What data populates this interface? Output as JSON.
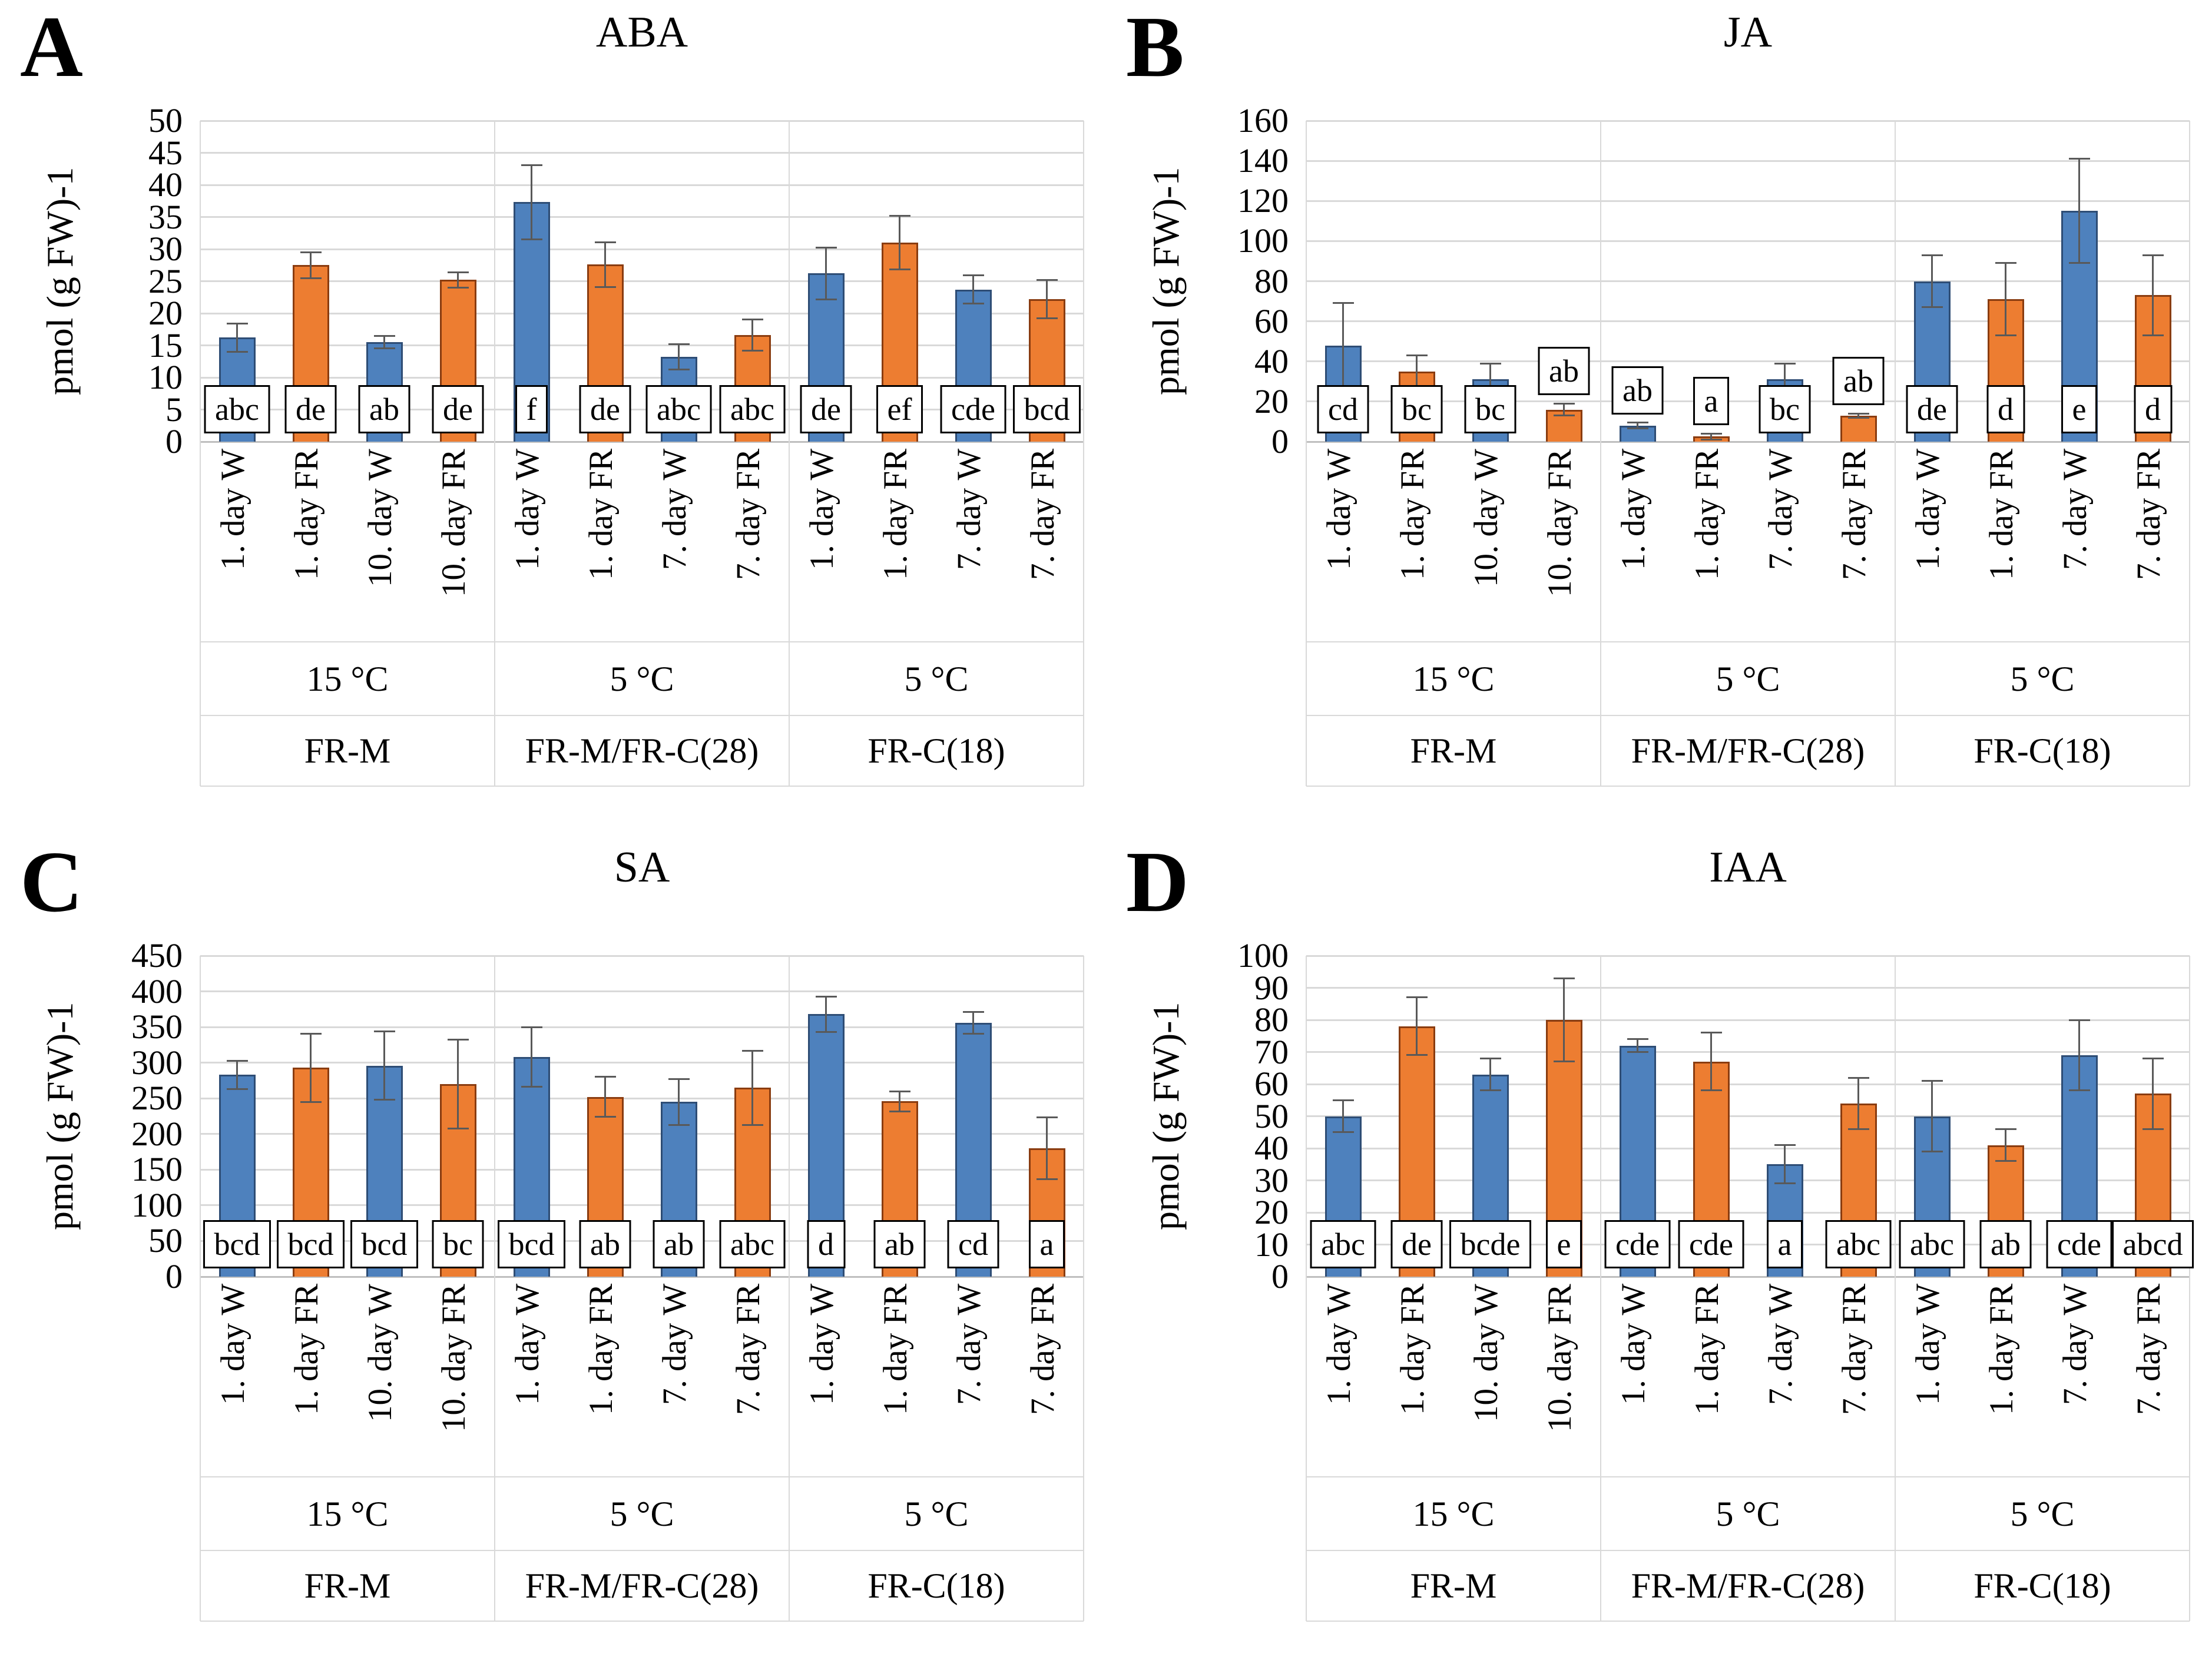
{
  "figure": {
    "y_axis_label": "pmol (g FW)-1",
    "colors": {
      "blue_fill": "#4e81bd",
      "blue_border": "#2e4d75",
      "orange_fill": "#ed7d31",
      "orange_border": "#8a3c10",
      "error_bar": "#595959",
      "gridline": "#d9d9d9",
      "axis_line": "#bfbfbf",
      "letterbox_border": "#000000",
      "text": "#000000"
    },
    "legend_note": "blue bars = W treatment, orange bars = FR treatment"
  },
  "chart_data": [
    {
      "panel": "A",
      "title": "ABA",
      "type": "bar",
      "ylabel": "pmol (g FW)-1",
      "ylim": [
        0,
        50
      ],
      "ystep": 5,
      "grid": true,
      "groups": [
        {
          "temp": "15 °C",
          "treatment": "FR-M"
        },
        {
          "temp": "5 °C",
          "treatment": "FR-M/FR-C(28)"
        },
        {
          "temp": "5 °C",
          "treatment": "FR-C(18)"
        }
      ],
      "bars": [
        {
          "label": "1. day W",
          "series": "W",
          "value": 16.2,
          "err": 2.2,
          "letter": "abc",
          "letter_pos": "low"
        },
        {
          "label": "1. day FR",
          "series": "FR",
          "value": 27.5,
          "err": 2.0,
          "letter": "de",
          "letter_pos": "low"
        },
        {
          "label": "10. day W",
          "series": "W",
          "value": 15.5,
          "err": 1.0,
          "letter": "ab",
          "letter_pos": "low"
        },
        {
          "label": "10. day FR",
          "series": "FR",
          "value": 25.2,
          "err": 1.2,
          "letter": "de",
          "letter_pos": "low"
        },
        {
          "label": "1. day W",
          "series": "W",
          "value": 37.3,
          "err": 5.8,
          "letter": "f",
          "letter_pos": "low"
        },
        {
          "label": "1. day FR",
          "series": "FR",
          "value": 27.6,
          "err": 3.5,
          "letter": "de",
          "letter_pos": "low"
        },
        {
          "label": "7. day W",
          "series": "W",
          "value": 13.2,
          "err": 2.0,
          "letter": "abc",
          "letter_pos": "low"
        },
        {
          "label": "7. day FR",
          "series": "FR",
          "value": 16.6,
          "err": 2.4,
          "letter": "abc",
          "letter_pos": "low"
        },
        {
          "label": "1. day W",
          "series": "W",
          "value": 26.2,
          "err": 4.0,
          "letter": "de",
          "letter_pos": "low"
        },
        {
          "label": "1. day FR",
          "series": "FR",
          "value": 31.0,
          "err": 4.2,
          "letter": "ef",
          "letter_pos": "low"
        },
        {
          "label": "7. day W",
          "series": "W",
          "value": 23.7,
          "err": 2.2,
          "letter": "cde",
          "letter_pos": "low"
        },
        {
          "label": "7. day FR",
          "series": "FR",
          "value": 22.2,
          "err": 3.0,
          "letter": "bcd",
          "letter_pos": "low"
        }
      ]
    },
    {
      "panel": "B",
      "title": "JA",
      "type": "bar",
      "ylabel": "pmol (g FW)-1",
      "ylim": [
        0,
        160
      ],
      "ystep": 20,
      "grid": true,
      "groups": [
        {
          "temp": "15 °C",
          "treatment": "FR-M"
        },
        {
          "temp": "5 °C",
          "treatment": "FR-M/FR-C(28)"
        },
        {
          "temp": "5 °C",
          "treatment": "FR-C(18)"
        }
      ],
      "bars": [
        {
          "label": "1. day W",
          "series": "W",
          "value": 48,
          "err": 21,
          "letter": "cd",
          "letter_pos": "low"
        },
        {
          "label": "1. day FR",
          "series": "FR",
          "value": 35,
          "err": 8,
          "letter": "bc",
          "letter_pos": "low"
        },
        {
          "label": "10. day W",
          "series": "W",
          "value": 31,
          "err": 8,
          "letter": "bc",
          "letter_pos": "low"
        },
        {
          "label": "10. day FR",
          "series": "FR",
          "value": 16,
          "err": 3,
          "letter": "ab",
          "letter_pos": "high"
        },
        {
          "label": "1. day W",
          "series": "W",
          "value": 8,
          "err": 1.5,
          "letter": "ab",
          "letter_pos": "high"
        },
        {
          "label": "1. day FR",
          "series": "FR",
          "value": 2.5,
          "err": 1.5,
          "letter": "a",
          "letter_pos": "high"
        },
        {
          "label": "7. day W",
          "series": "W",
          "value": 31,
          "err": 8,
          "letter": "bc",
          "letter_pos": "low"
        },
        {
          "label": "7. day FR",
          "series": "FR",
          "value": 13,
          "err": 1,
          "letter": "ab",
          "letter_pos": "high"
        },
        {
          "label": "1. day W",
          "series": "W",
          "value": 80,
          "err": 13,
          "letter": "de",
          "letter_pos": "low"
        },
        {
          "label": "1. day FR",
          "series": "FR",
          "value": 71,
          "err": 18,
          "letter": "d",
          "letter_pos": "low"
        },
        {
          "label": "7. day W",
          "series": "W",
          "value": 115,
          "err": 26,
          "letter": "e",
          "letter_pos": "low"
        },
        {
          "label": "7. day FR",
          "series": "FR",
          "value": 73,
          "err": 20,
          "letter": "d",
          "letter_pos": "low"
        }
      ]
    },
    {
      "panel": "C",
      "title": "SA",
      "type": "bar",
      "ylabel": "pmol (g FW)-1",
      "ylim": [
        0,
        450
      ],
      "ystep": 50,
      "grid": true,
      "groups": [
        {
          "temp": "15 °C",
          "treatment": "FR-M"
        },
        {
          "temp": "5 °C",
          "treatment": "FR-M/FR-C(28)"
        },
        {
          "temp": "5 °C",
          "treatment": "FR-C(18)"
        }
      ],
      "bars": [
        {
          "label": "1. day W",
          "series": "W",
          "value": 283,
          "err": 20,
          "letter": "bcd",
          "letter_pos": "low"
        },
        {
          "label": "1. day FR",
          "series": "FR",
          "value": 293,
          "err": 48,
          "letter": "bcd",
          "letter_pos": "low"
        },
        {
          "label": "10. day W",
          "series": "W",
          "value": 296,
          "err": 48,
          "letter": "bcd",
          "letter_pos": "low"
        },
        {
          "label": "10. day FR",
          "series": "FR",
          "value": 270,
          "err": 62,
          "letter": "bc",
          "letter_pos": "low"
        },
        {
          "label": "1. day W",
          "series": "W",
          "value": 308,
          "err": 42,
          "letter": "bcd",
          "letter_pos": "low"
        },
        {
          "label": "1. day FR",
          "series": "FR",
          "value": 252,
          "err": 28,
          "letter": "ab",
          "letter_pos": "low"
        },
        {
          "label": "7. day W",
          "series": "W",
          "value": 245,
          "err": 32,
          "letter": "ab",
          "letter_pos": "low"
        },
        {
          "label": "7. day FR",
          "series": "FR",
          "value": 265,
          "err": 52,
          "letter": "abc",
          "letter_pos": "low"
        },
        {
          "label": "1. day W",
          "series": "W",
          "value": 368,
          "err": 25,
          "letter": "d",
          "letter_pos": "low"
        },
        {
          "label": "1. day FR",
          "series": "FR",
          "value": 246,
          "err": 14,
          "letter": "ab",
          "letter_pos": "low"
        },
        {
          "label": "7. day W",
          "series": "W",
          "value": 356,
          "err": 15,
          "letter": "cd",
          "letter_pos": "low"
        },
        {
          "label": "7. day FR",
          "series": "FR",
          "value": 180,
          "err": 43,
          "letter": "a",
          "letter_pos": "low"
        }
      ]
    },
    {
      "panel": "D",
      "title": "IAA",
      "type": "bar",
      "ylabel": "pmol (g FW)-1",
      "ylim": [
        0,
        100
      ],
      "ystep": 10,
      "grid": true,
      "groups": [
        {
          "temp": "15 °C",
          "treatment": "FR-M"
        },
        {
          "temp": "5 °C",
          "treatment": "FR-M/FR-C(28)"
        },
        {
          "temp": "5 °C",
          "treatment": "FR-C(18)"
        }
      ],
      "bars": [
        {
          "label": "1. day W",
          "series": "W",
          "value": 50,
          "err": 5,
          "letter": "abc",
          "letter_pos": "low"
        },
        {
          "label": "1. day FR",
          "series": "FR",
          "value": 78,
          "err": 9,
          "letter": "de",
          "letter_pos": "low"
        },
        {
          "label": "10. day W",
          "series": "W",
          "value": 63,
          "err": 5,
          "letter": "bcde",
          "letter_pos": "low"
        },
        {
          "label": "10. day FR",
          "series": "FR",
          "value": 80,
          "err": 13,
          "letter": "e",
          "letter_pos": "low"
        },
        {
          "label": "1. day W",
          "series": "W",
          "value": 72,
          "err": 2,
          "letter": "cde",
          "letter_pos": "low"
        },
        {
          "label": "1. day FR",
          "series": "FR",
          "value": 67,
          "err": 9,
          "letter": "cde",
          "letter_pos": "low"
        },
        {
          "label": "7. day W",
          "series": "W",
          "value": 35,
          "err": 6,
          "letter": "a",
          "letter_pos": "low"
        },
        {
          "label": "7. day FR",
          "series": "FR",
          "value": 54,
          "err": 8,
          "letter": "abc",
          "letter_pos": "low"
        },
        {
          "label": "1. day W",
          "series": "W",
          "value": 50,
          "err": 11,
          "letter": "abc",
          "letter_pos": "low"
        },
        {
          "label": "1. day FR",
          "series": "FR",
          "value": 41,
          "err": 5,
          "letter": "ab",
          "letter_pos": "low"
        },
        {
          "label": "7. day W",
          "series": "W",
          "value": 69,
          "err": 11,
          "letter": "cde",
          "letter_pos": "low"
        },
        {
          "label": "7. day FR",
          "series": "FR",
          "value": 57,
          "err": 11,
          "letter": "abcd",
          "letter_pos": "low"
        }
      ]
    }
  ]
}
